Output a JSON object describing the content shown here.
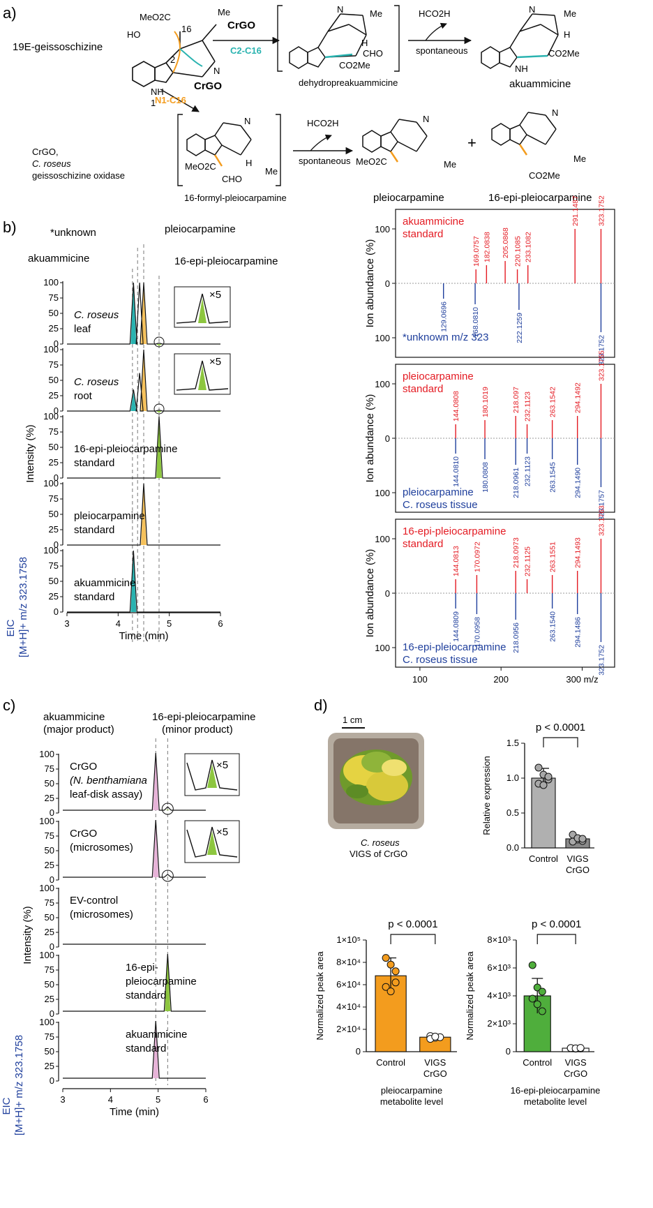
{
  "panel_labels": {
    "a": "a)",
    "b": "b)",
    "c": "c)",
    "d": "d)"
  },
  "scheme": {
    "substrate": "19E-geissoschizine",
    "enzyme": "CrGO",
    "bond_c2c16": "C2-C16",
    "bond_n1c16": "N1-C16",
    "reagent": "HCO2H",
    "condition": "spontaneous",
    "intermediate_1": "dehydropreakuammicine",
    "product_1": "akuammicine",
    "intermediate_2": "16-formyl-pleiocarpamine",
    "product_2": "pleiocarpamine",
    "plus": "+",
    "product_3": "16-epi-pleiocarpamine",
    "note_line1": "CrGO,",
    "note_line2": "C. roseus",
    "note_line3": "geissoschizine oxidase",
    "atom_labels": [
      "MeO2C",
      "HO",
      "16",
      "2",
      "NH",
      "1",
      "N",
      "Me",
      "H",
      "CHO",
      "CO2Me",
      "NH",
      "N"
    ]
  },
  "panel_b": {
    "chrom_labels": {
      "akuammicine": "akuammicine",
      "unknown": "*unknown",
      "pleiocarpamine": "pleiocarpamine",
      "epi": "16-epi-pleiocarpamine"
    },
    "traces": [
      {
        "label1": "C. roseus",
        "label2": "leaf"
      },
      {
        "label1": "C. roseus",
        "label2": "root"
      },
      {
        "label1": "16-epi-pleiocarpamine",
        "label2": "standard"
      },
      {
        "label1": "pleiocarpamine",
        "label2": "standard"
      },
      {
        "label1": "akuammicine",
        "label2": "standard"
      }
    ],
    "inset_label": "×5",
    "y_ticks": [
      "0",
      "50",
      "100"
    ],
    "y_ticks_full": [
      "0",
      "25",
      "50",
      "75",
      "100"
    ],
    "ylabel": "Intensity (%)",
    "eic_line1": "EIC",
    "eic_line2": "[M+H]+ m/z 323.1758",
    "x_ticks": [
      "3",
      "4",
      "5",
      "6"
    ],
    "xlabel": "Time (min)",
    "ms_ylabel": "Ion abundance (%)",
    "ms_x_ticks": [
      "100",
      "200",
      "300 m/z"
    ],
    "ms": [
      {
        "top_label1": "akuammicine",
        "top_label2": "standard",
        "bot_label1": "*unknown m/z 323",
        "bot_label2": "",
        "top_peaks": [
          "169.0757",
          "182.0838",
          "205.0868",
          "220.1085",
          "233.1082",
          "291.1487",
          "323.1752"
        ],
        "bot_peaks": [
          "129.0696",
          "168.0810",
          "222.1259",
          "323.1752"
        ]
      },
      {
        "top_label1": "pleiocarpamine",
        "top_label2": "standard",
        "bot_label1": "pleiocarpamine",
        "bot_label2": "C. roseus tissue",
        "top_peaks": [
          "144.0808",
          "180.1019",
          "218.097",
          "232.1123",
          "263.1542",
          "294.1492",
          "323.1755"
        ],
        "bot_peaks": [
          "144.0810",
          "180.0808",
          "218.0961",
          "232.1123",
          "263.1545",
          "294.1490",
          "323.1757"
        ]
      },
      {
        "top_label1": "16-epi-pleiocarpamine",
        "top_label2": "standard",
        "bot_label1": "16-epi-pleiocarpamine",
        "bot_label2": "C. roseus tissue",
        "top_peaks": [
          "144.0813",
          "170.0972",
          "218.0973",
          "232.1125",
          "263.1551",
          "294.1493",
          "323.1763"
        ],
        "bot_peaks": [
          "144.0809",
          "170.0958",
          "218.0956",
          "263.1540",
          "294.1486",
          "323.1752"
        ]
      }
    ],
    "ms_axis_ticks": [
      "100",
      "0",
      "100"
    ]
  },
  "panel_c": {
    "top_left": "akuammicine",
    "top_left2": "(major product)",
    "top_right": "16-epi-pleiocarpamine",
    "top_right2": "(minor product)",
    "traces": [
      {
        "l1": "CrGO",
        "l2": "(N. benthamiana",
        "l3": "leaf-disk assay)"
      },
      {
        "l1": "CrGO",
        "l2": "(microsomes)",
        "l3": ""
      },
      {
        "l1": "EV-control",
        "l2": "(microsomes)",
        "l3": ""
      },
      {
        "l1": "16-epi-",
        "l2": "pleiocarpamine",
        "l3": "standard"
      },
      {
        "l1": "akuammicine",
        "l2": "standard",
        "l3": ""
      }
    ],
    "inset_label": "×5"
  },
  "panel_d": {
    "scale": "1 cm",
    "photo_caption1": "C. roseus",
    "photo_caption2": "VIGS of CrGO",
    "rel_expr": {
      "ylabel": "Relative expression",
      "p": "p < 0.0001",
      "y_ticks": [
        "0.0",
        "0.5",
        "1.0",
        "1.5"
      ],
      "cats": [
        "Control",
        "VIGS",
        "CrGO"
      ]
    },
    "pleio": {
      "ylabel": "Normalized peak area",
      "p": "p < 0.0001",
      "y_ticks": [
        "0",
        "2×10⁴",
        "4×10⁴",
        "6×10⁴",
        "8×10⁴",
        "1×10⁵"
      ],
      "cap1": "pleiocarpamine",
      "cap2": "metabolite level"
    },
    "epi": {
      "ylabel": "Normalized peak area",
      "p": "p < 0.0001",
      "y_ticks": [
        "0",
        "2×10³",
        "4×10³",
        "6×10³",
        "8×10³"
      ],
      "cap1": "16-epi-pleiocarpamine",
      "cap2": "metabolite level"
    }
  },
  "chart_data": [
    {
      "type": "bar",
      "title": "",
      "ylabel": "Relative expression",
      "categories": [
        "Control",
        "VIGS CrGO"
      ],
      "values": [
        1.0,
        0.13
      ],
      "errors": [
        0.14,
        0.04
      ],
      "points": [
        [
          1.15,
          1.05,
          0.98,
          0.92,
          0.9,
          1.02
        ],
        [
          0.19,
          0.12,
          0.1,
          0.09,
          0.14,
          0.13
        ]
      ],
      "ylim": [
        0,
        1.5
      ],
      "annotation": "p < 0.0001",
      "colors": [
        "#b0b0b0",
        "#8a8a8a"
      ]
    },
    {
      "type": "bar",
      "title": "",
      "ylabel": "Normalized peak area",
      "xlabel": "pleiocarpamine metabolite level",
      "categories": [
        "Control",
        "VIGS CrGO"
      ],
      "values": [
        68000,
        13000
      ],
      "errors": [
        16000,
        1500
      ],
      "points": [
        [
          84000,
          78000,
          62000,
          58000,
          54000,
          72000
        ],
        [
          14000,
          12500,
          13000,
          11500,
          13500
        ]
      ],
      "ylim": [
        0,
        100000
      ],
      "annotation": "p < 0.0001",
      "colors": [
        "#f39c1e",
        "#f39c1e"
      ]
    },
    {
      "type": "bar",
      "title": "",
      "ylabel": "Normalized peak area",
      "xlabel": "16-epi-pleiocarpamine metabolite level",
      "categories": [
        "Control",
        "VIGS CrGO"
      ],
      "values": [
        4000,
        250
      ],
      "errors": [
        1250,
        80
      ],
      "points": [
        [
          6200,
          4600,
          4300,
          3800,
          3400,
          2900
        ],
        [
          250,
          220,
          230,
          260,
          240,
          270
        ]
      ],
      "ylim": [
        0,
        8000
      ],
      "annotation": "p < 0.0001",
      "colors": [
        "#4fae3c",
        "#ffffff"
      ]
    }
  ],
  "colors": {
    "green": "#8dc63f",
    "yellow": "#f5c15b",
    "teal": "#2ab3b0",
    "pink": "#e7b3d8",
    "red": "#e41b23",
    "blue": "#1f3f9c",
    "orange": "#f39c1e",
    "bargreen": "#4fae3c"
  }
}
